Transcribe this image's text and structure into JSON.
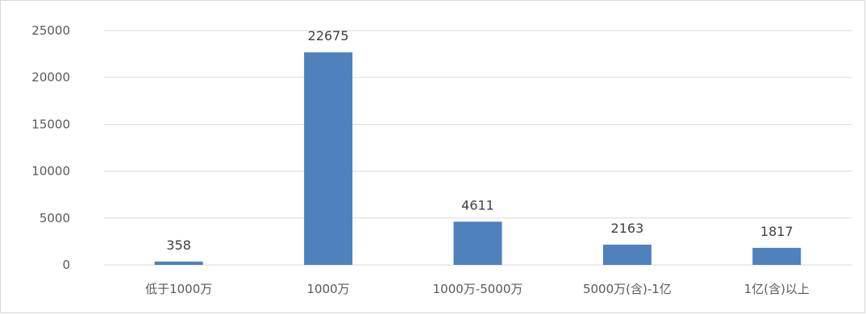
{
  "chart_data": {
    "type": "bar",
    "categories": [
      "低于1000万",
      "1000万",
      "1000万-5000万",
      "5000万(含)-1亿",
      "1亿(含)以上"
    ],
    "values": [
      358,
      22675,
      4611,
      2163,
      1817
    ],
    "data_labels": [
      "358",
      "22675",
      "4611",
      "2163",
      "1817"
    ],
    "y_ticks": [
      "0",
      "5000",
      "10000",
      "15000",
      "20000",
      "25000"
    ],
    "ylim": [
      0,
      25000
    ],
    "title": "",
    "xlabel": "",
    "ylabel": "",
    "grid": true,
    "legend": "none",
    "bar_color": "#4f81bd",
    "grid_color": "#d9d9d9"
  }
}
